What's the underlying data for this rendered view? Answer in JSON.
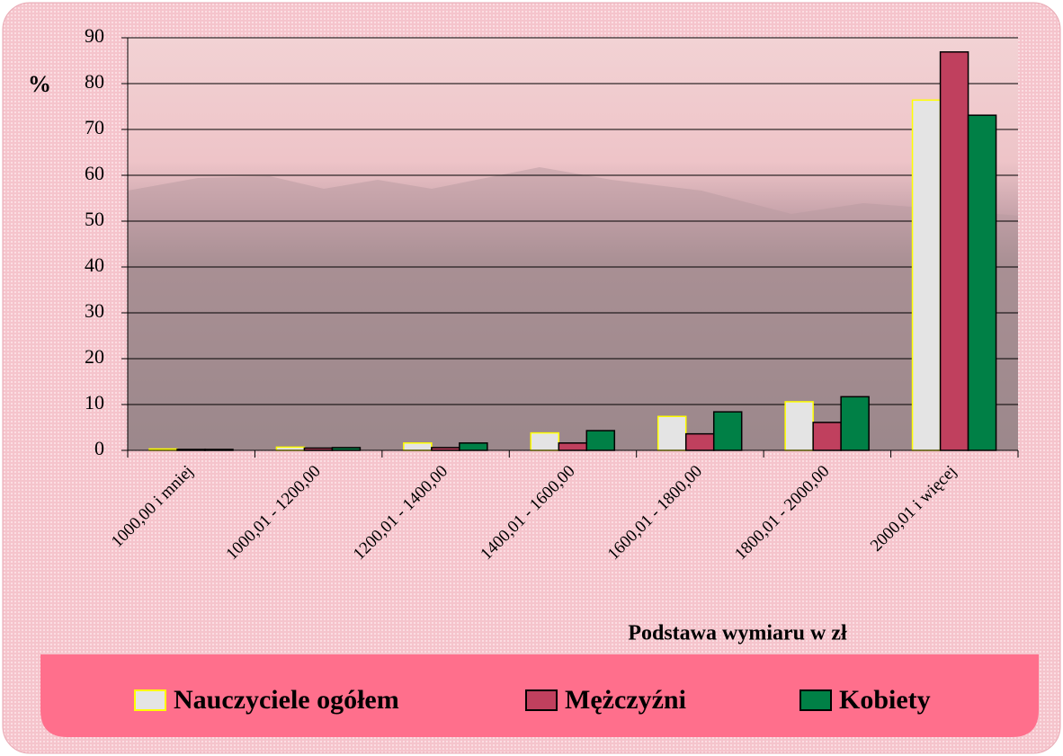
{
  "chart_data": {
    "type": "bar",
    "y_label": "%",
    "x_label": "Podstawa wymiaru w zł",
    "categories": [
      "1000,00 i mniej",
      "1000,01 - 1200,00",
      "1200,01 - 1400,00",
      "1400,01 - 1600,00",
      "1600,01 - 1800,00",
      "1800,01 - 2000,00",
      "2000,01 i więcej"
    ],
    "series": [
      {
        "name": "Nauczyciele ogółem",
        "color": "#e4e4e4",
        "edgecolor": "#ffff00",
        "values": [
          0.3,
          0.7,
          1.6,
          3.8,
          7.4,
          10.6,
          76.4
        ]
      },
      {
        "name": "Mężczyźni",
        "color": "#c0405e",
        "edgecolor": "#000000",
        "values": [
          0.2,
          0.5,
          0.6,
          1.6,
          3.6,
          6.1,
          86.9
        ]
      },
      {
        "name": "Kobiety",
        "color": "#008046",
        "edgecolor": "#000000",
        "values": [
          0.2,
          0.6,
          1.6,
          4.3,
          8.4,
          11.7,
          73.1
        ]
      }
    ],
    "ylim": [
      0,
      90
    ],
    "yticks": [
      0,
      10,
      20,
      30,
      40,
      50,
      60,
      70,
      80,
      90
    ],
    "grid": true,
    "legend": "bottom"
  }
}
